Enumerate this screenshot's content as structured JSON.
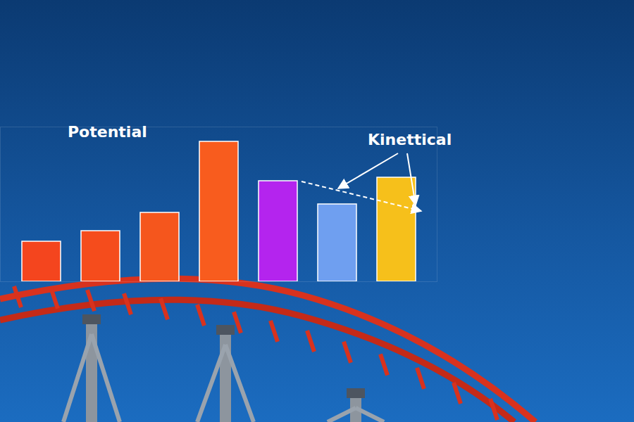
{
  "chart_data": {
    "type": "bar",
    "categories": [
      null,
      null,
      null,
      null,
      null,
      null,
      null
    ],
    "values": [
      57,
      72,
      98,
      199,
      143,
      110,
      148
    ],
    "colors": [
      "#f4451e",
      "#f54c1c",
      "#f5561d",
      "#f85c1e",
      "#b424ee",
      "#6f9ff0",
      "#f6c01b"
    ],
    "ylim": [
      0,
      220
    ],
    "tick_labels": false,
    "annotations": [
      "Potential",
      "Kinettical"
    ]
  }
}
